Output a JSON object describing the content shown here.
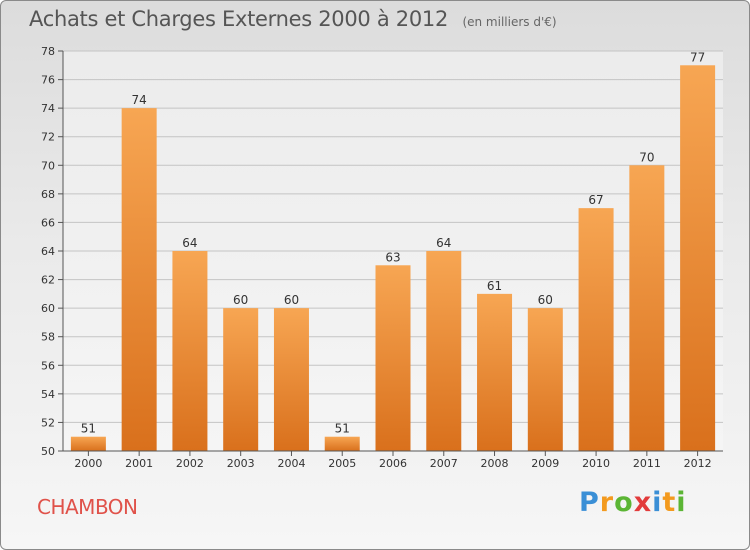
{
  "header": {
    "title": "Achats et Charges Externes 2000 à 2012",
    "unit": "(en milliers d'€)"
  },
  "commune": "CHAMBON",
  "logo": {
    "letters": [
      {
        "ch": "P",
        "color": "#3a8fd6"
      },
      {
        "ch": "r",
        "color": "#f39a1e"
      },
      {
        "ch": "o",
        "color": "#5bb534"
      },
      {
        "ch": "x",
        "color": "#e23b3b"
      },
      {
        "ch": "i",
        "color": "#3a8fd6"
      },
      {
        "ch": "t",
        "color": "#f39a1e"
      },
      {
        "ch": "i",
        "color": "#5bb534"
      }
    ]
  },
  "chart_data": {
    "type": "bar",
    "title": "Achats et Charges Externes 2000 à 2012",
    "subtitle": "(en milliers d'€)",
    "categories": [
      "2000",
      "2001",
      "2002",
      "2003",
      "2004",
      "2005",
      "2006",
      "2007",
      "2008",
      "2009",
      "2010",
      "2011",
      "2012"
    ],
    "values": [
      51,
      74,
      64,
      60,
      60,
      51,
      63,
      64,
      61,
      60,
      67,
      70,
      77
    ],
    "ylim": [
      50,
      78
    ],
    "yticks": [
      50,
      52,
      54,
      56,
      58,
      60,
      62,
      64,
      66,
      68,
      70,
      72,
      74,
      76,
      78
    ],
    "grid": true,
    "bar_color": "#f0882a"
  }
}
